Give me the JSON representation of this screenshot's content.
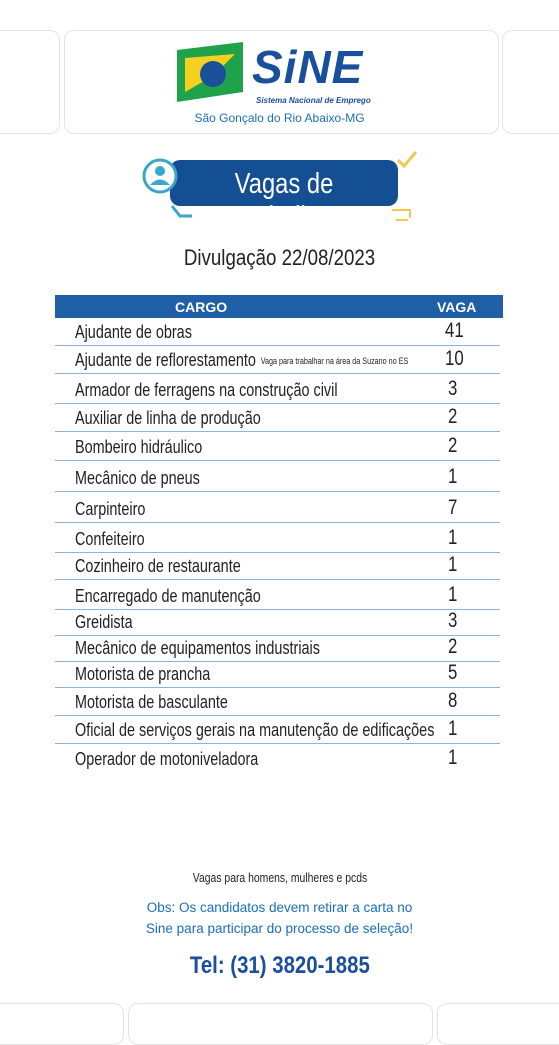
{
  "header": {
    "brand": "SiNE",
    "brand_subtitle": "Sistema Nacional de Emprego",
    "location": "São Gonçalo do Rio Abaixo-MG"
  },
  "banner": {
    "title": "Vagas de trabalho"
  },
  "date_line": "Divulgação 22/08/2023",
  "table": {
    "columns": [
      "CARGO",
      "VAGA"
    ],
    "rows": [
      {
        "cargo": "Ajudante de obras",
        "vaga": 41
      },
      {
        "cargo": "Ajudante de reflorestamento",
        "note": "Vaga para trabalhar na área da Suzano no ES",
        "vaga": 10
      },
      {
        "cargo": "Armador de ferragens na construção civil",
        "vaga": 3
      },
      {
        "cargo": "Auxiliar de linha de produção",
        "vaga": 2
      },
      {
        "cargo": "Bombeiro hidráulico",
        "vaga": 2
      },
      {
        "cargo": "Mecânico de pneus",
        "vaga": 1
      },
      {
        "cargo": "Carpinteiro",
        "vaga": 7
      },
      {
        "cargo": "Confeiteiro",
        "vaga": 1
      },
      {
        "cargo": "Cozinheiro de restaurante",
        "vaga": 1
      },
      {
        "cargo": "Encarregado de manutenção",
        "vaga": 1
      },
      {
        "cargo": "Greidista",
        "vaga": 3
      },
      {
        "cargo": "Mecânico de equipamentos industriais",
        "vaga": 2
      },
      {
        "cargo": "Motorista de prancha",
        "vaga": 5
      },
      {
        "cargo": "Motorista de basculante",
        "vaga": 8
      },
      {
        "cargo": "Oficial de serviços gerais na manutenção de edificações",
        "vaga": 1
      },
      {
        "cargo": "Operador de motoniveladora",
        "vaga": 1
      }
    ]
  },
  "footer": {
    "audience": "Vagas para homens, mulheres e pcds",
    "obs_line1": "Obs: Os candidatos devem retirar a carta no",
    "obs_line2": "Sine para participar do processo de seleção!",
    "phone": "Tel: (31) 3820-1885"
  }
}
